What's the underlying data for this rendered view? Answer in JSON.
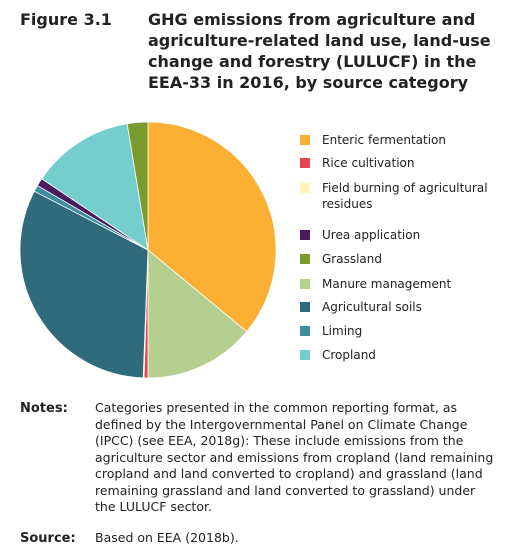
{
  "figure_label": "Figure 3.1",
  "chart_data": {
    "type": "pie",
    "title": "GHG emissions from agriculture and agriculture-related land use, land-use change and forestry (LULUCF) in the EEA-33 in 2016, by source category",
    "categories": [
      "Enteric fermentation",
      "Rice cultivation",
      "Field burning of agricultural residues",
      "Urea application",
      "Grassland",
      "Manure management",
      "Agricultural soils",
      "Liming",
      "Cropland"
    ],
    "values": [
      36,
      0.5,
      0.1,
      1,
      2.6,
      14,
      32,
      0.8,
      13
    ],
    "colors": [
      "#fbb034",
      "#e8434f",
      "#fef6b8",
      "#4a1c5e",
      "#7a9a2e",
      "#b5cf8f",
      "#2f6b7c",
      "#3e8ea0",
      "#75cece"
    ]
  },
  "notes": {
    "label": "Notes:",
    "text": "Categories presented in the common reporting format, as defined by the Intergovernmental Panel on Climate Change (IPCC) (see EEA, 2018g): These include emissions from the agriculture sector and emissions from cropland (land remaining cropland and land converted to cropland) and grassland (land remaining grassland and land converted to grassland) under the LULUCF sector."
  },
  "source": {
    "label": "Source:",
    "text": "Based on EEA (2018b)."
  }
}
